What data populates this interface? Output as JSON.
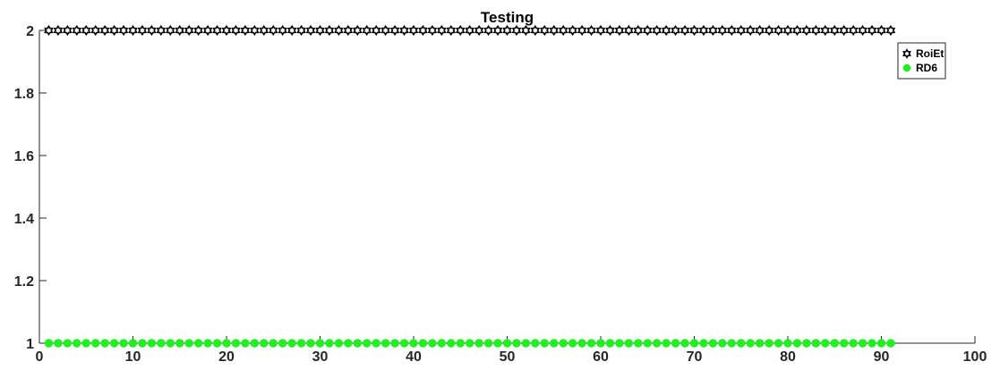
{
  "chart_data": {
    "type": "scatter",
    "title": "Testing",
    "xlabel": "",
    "ylabel": "",
    "xlim": [
      0,
      100
    ],
    "ylim": [
      1,
      2
    ],
    "xticks": [
      0,
      10,
      20,
      30,
      40,
      50,
      60,
      70,
      80,
      90,
      100
    ],
    "yticks": [
      1,
      1.2,
      1.4,
      1.6,
      1.8,
      2
    ],
    "xtick_labels": [
      "0",
      "10",
      "20",
      "30",
      "40",
      "50",
      "60",
      "70",
      "80",
      "90",
      "100"
    ],
    "ytick_labels": [
      "1",
      "1.2",
      "1.4",
      "1.6",
      "1.8",
      "2"
    ],
    "x_range": {
      "start": 1,
      "end": 91,
      "step": 1
    },
    "series": [
      {
        "name": "RoiEt",
        "y_constant": 2,
        "marker": "hexagram-open",
        "color": "#000000"
      },
      {
        "name": "RD6",
        "y_constant": 1,
        "marker": "filled-circle",
        "color": "#22ee22"
      }
    ],
    "legend_position": "top-right",
    "grid": false
  }
}
